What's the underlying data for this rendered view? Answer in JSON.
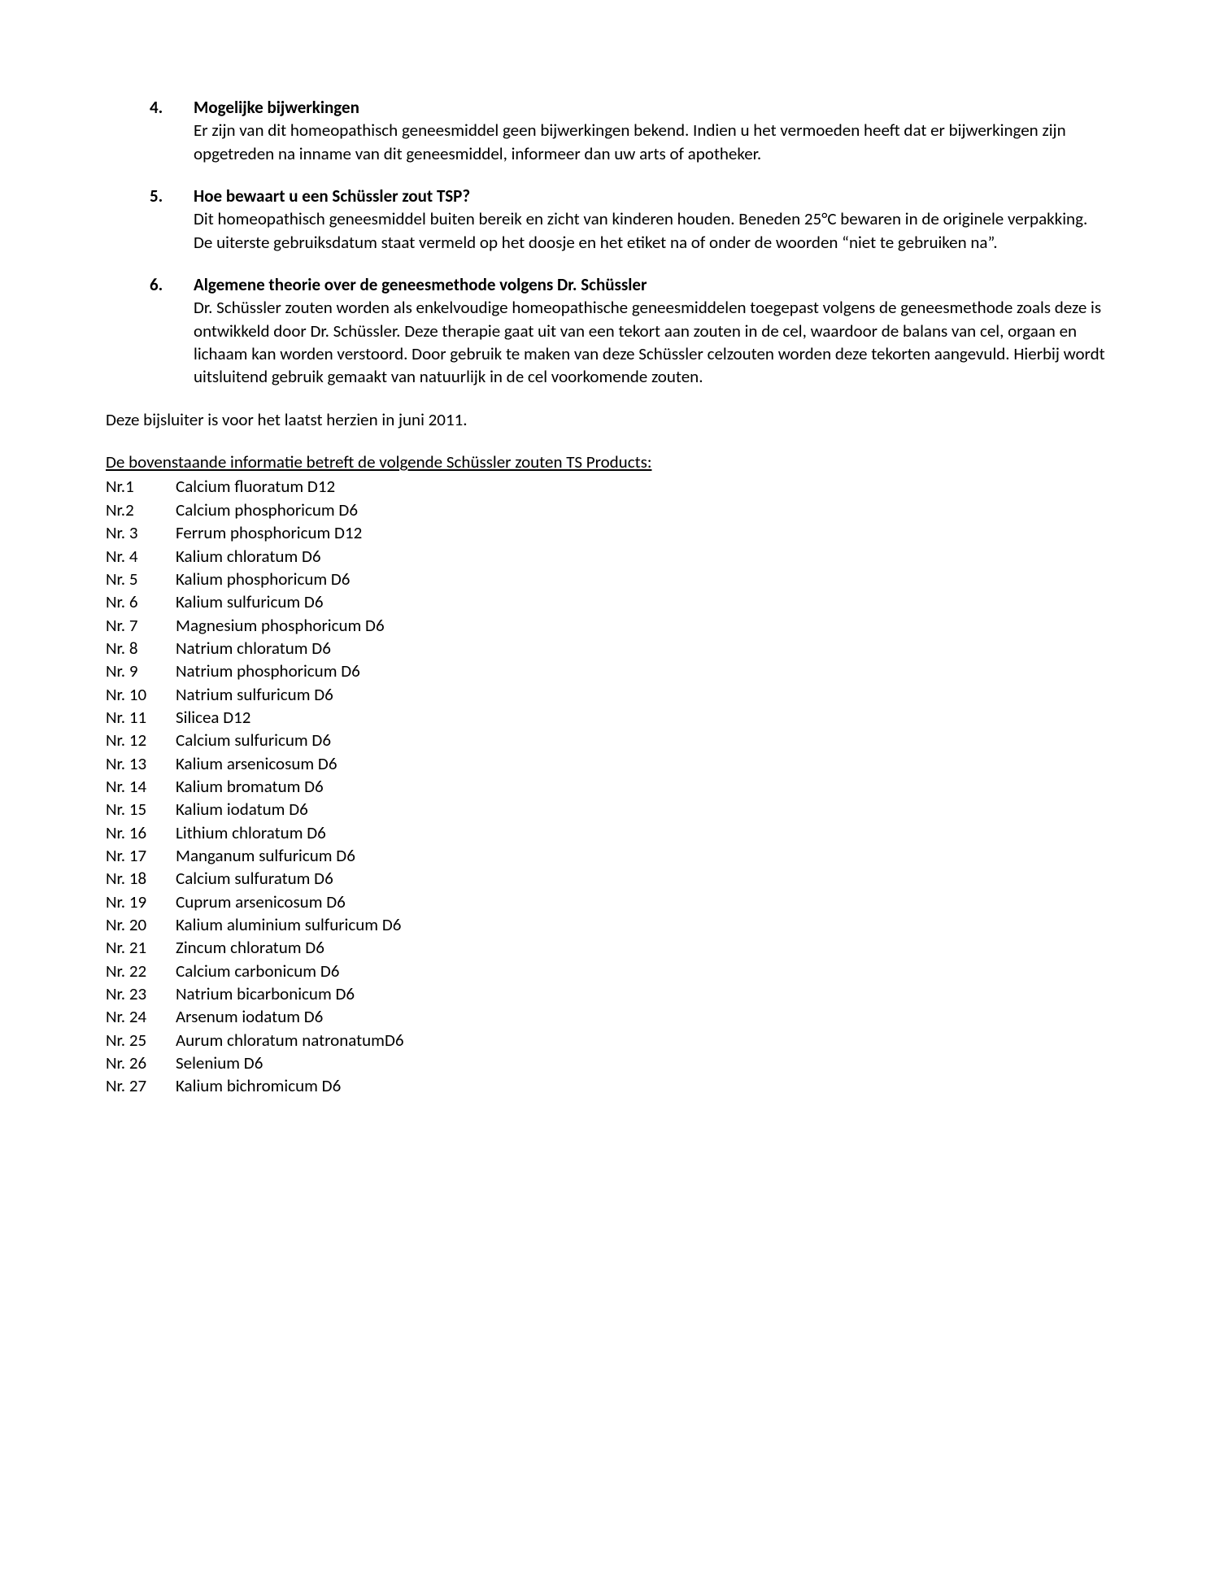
{
  "sections": [
    {
      "number": "4.",
      "title": "Mogelijke bijwerkingen",
      "body": "Er zijn van dit homeopathisch geneesmiddel geen bijwerkingen bekend. Indien u het vermoeden heeft dat er bijwerkingen zijn opgetreden na inname van dit geneesmiddel, informeer dan uw arts of apotheker."
    },
    {
      "number": "5.",
      "title": "Hoe bewaart u een Schüssler zout TSP?",
      "body": "Dit homeopathisch geneesmiddel buiten bereik en zicht van kinderen houden. Beneden 25°C bewaren in de originele verpakking.\nDe uiterste gebruiksdatum staat vermeld op het doosje en het etiket na of onder de woorden “niet te gebruiken na”."
    },
    {
      "number": "6.",
      "title": "Algemene theorie over de geneesmethode volgens Dr. Schüssler",
      "body": "Dr. Schüssler zouten worden als enkelvoudige homeopathische geneesmiddelen toegepast volgens de geneesmethode zoals deze is ontwikkeld door Dr. Schüssler. Deze therapie gaat uit van een tekort aan zouten in de cel, waardoor de balans van cel, orgaan en lichaam kan worden verstoord. Door gebruik te maken van deze Schüssler celzouten worden deze tekorten aangevuld. Hierbij wordt uitsluitend gebruik gemaakt van natuurlijk in de cel voorkomende zouten."
    }
  ],
  "revised_line": "Deze bijsluiter is voor het laatst herzien in juni 2011.",
  "products_intro": "De bovenstaande informatie betreft de volgende Schüssler zouten TS Products:",
  "products": [
    {
      "nr": "Nr.1",
      "name": "Calcium fluoratum D12"
    },
    {
      "nr": "Nr.2",
      "name": "Calcium phosphoricum D6"
    },
    {
      "nr": "Nr. 3",
      "name": "Ferrum phosphoricum D12"
    },
    {
      "nr": "Nr. 4",
      "name": "Kalium chloratum D6"
    },
    {
      "nr": "Nr. 5",
      "name": "Kalium phosphoricum D6"
    },
    {
      "nr": "Nr. 6",
      "name": "Kalium sulfuricum D6"
    },
    {
      "nr": "Nr. 7",
      "name": "Magnesium phosphoricum D6"
    },
    {
      "nr": "Nr. 8",
      "name": "Natrium chloratum D6"
    },
    {
      "nr": "Nr. 9",
      "name": "Natrium phosphoricum D6"
    },
    {
      "nr": "Nr. 10",
      "name": "Natrium sulfuricum D6"
    },
    {
      "nr": "Nr. 11",
      "name": "Silicea D12"
    },
    {
      "nr": "Nr. 12",
      "name": "Calcium sulfuricum D6"
    },
    {
      "nr": "Nr. 13",
      "name": "Kalium arsenicosum D6"
    },
    {
      "nr": "Nr. 14",
      "name": "Kalium bromatum D6"
    },
    {
      "nr": "Nr. 15",
      "name": "Kalium iodatum D6"
    },
    {
      "nr": "Nr. 16",
      "name": "Lithium chloratum D6"
    },
    {
      "nr": "Nr. 17",
      "name": "Manganum sulfuricum D6"
    },
    {
      "nr": "Nr. 18",
      "name": "Calcium sulfuratum D6"
    },
    {
      "nr": "Nr. 19",
      "name": "Cuprum arsenicosum D6"
    },
    {
      "nr": "Nr. 20",
      "name": "Kalium aluminium sulfuricum D6"
    },
    {
      "nr": "Nr. 21",
      "name": "Zincum chloratum D6"
    },
    {
      "nr": "Nr. 22",
      "name": "Calcium carbonicum D6"
    },
    {
      "nr": "Nr. 23",
      "name": "Natrium bicarbonicum D6"
    },
    {
      "nr": "Nr. 24",
      "name": "Arsenum iodatum D6"
    },
    {
      "nr": "Nr. 25",
      "name": "Aurum chloratum natronatumD6"
    },
    {
      "nr": "Nr. 26",
      "name": "Selenium D6"
    },
    {
      "nr": "Nr. 27",
      "name": "Kalium bichromicum D6"
    }
  ]
}
